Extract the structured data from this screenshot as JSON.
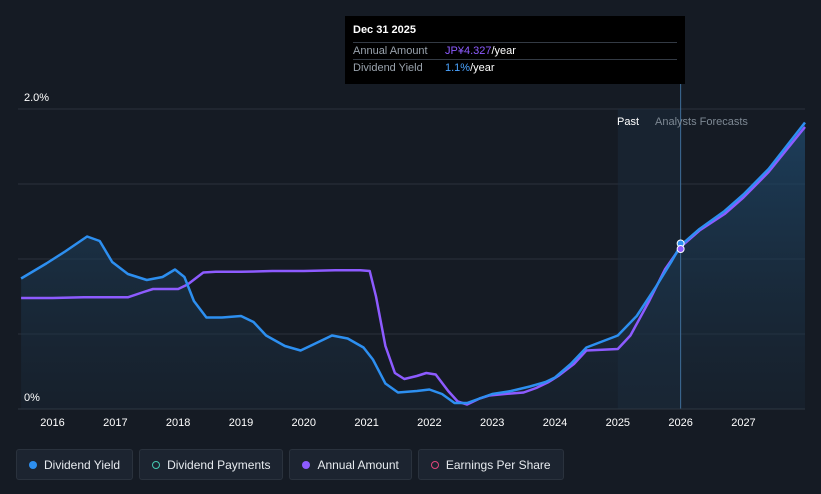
{
  "chart_data": {
    "type": "line",
    "y_axis": {
      "top_label": "2.0%",
      "bottom_label": "0%",
      "ylim": [
        0,
        2.0
      ]
    },
    "x_tick_labels": [
      "2016",
      "2017",
      "2018",
      "2019",
      "2020",
      "2021",
      "2022",
      "2023",
      "2024",
      "2025",
      "2026",
      "2027"
    ],
    "xlim": [
      2015.45,
      2027.98
    ],
    "region_labels": {
      "past": "Past",
      "forecast": "Analysts Forecasts"
    },
    "divider_x": 2026.0,
    "series": [
      {
        "name": "Dividend Yield",
        "color": "#2d8ff0",
        "points": [
          [
            2015.5,
            0.87
          ],
          [
            2015.9,
            0.97
          ],
          [
            2016.2,
            1.05
          ],
          [
            2016.55,
            1.15
          ],
          [
            2016.75,
            1.12
          ],
          [
            2016.95,
            0.98
          ],
          [
            2017.2,
            0.9
          ],
          [
            2017.5,
            0.86
          ],
          [
            2017.75,
            0.88
          ],
          [
            2017.95,
            0.93
          ],
          [
            2018.1,
            0.88
          ],
          [
            2018.25,
            0.72
          ],
          [
            2018.45,
            0.61
          ],
          [
            2018.7,
            0.61
          ],
          [
            2019.0,
            0.62
          ],
          [
            2019.2,
            0.58
          ],
          [
            2019.4,
            0.49
          ],
          [
            2019.7,
            0.42
          ],
          [
            2019.95,
            0.39
          ],
          [
            2020.1,
            0.42
          ],
          [
            2020.45,
            0.49
          ],
          [
            2020.7,
            0.47
          ],
          [
            2020.95,
            0.41
          ],
          [
            2021.1,
            0.33
          ],
          [
            2021.3,
            0.17
          ],
          [
            2021.5,
            0.11
          ],
          [
            2021.8,
            0.12
          ],
          [
            2022.0,
            0.13
          ],
          [
            2022.2,
            0.1
          ],
          [
            2022.4,
            0.04
          ],
          [
            2022.6,
            0.04
          ],
          [
            2022.8,
            0.07
          ],
          [
            2023.0,
            0.1
          ],
          [
            2023.3,
            0.12
          ],
          [
            2023.6,
            0.15
          ],
          [
            2023.85,
            0.18
          ],
          [
            2024.0,
            0.21
          ],
          [
            2024.25,
            0.3
          ],
          [
            2024.5,
            0.41
          ],
          [
            2024.75,
            0.45
          ],
          [
            2025.0,
            0.49
          ],
          [
            2025.3,
            0.62
          ],
          [
            2025.6,
            0.81
          ],
          [
            2025.85,
            0.98
          ],
          [
            2026.0,
            1.09
          ],
          [
            2026.3,
            1.2
          ],
          [
            2026.7,
            1.32
          ],
          [
            2027.0,
            1.43
          ],
          [
            2027.4,
            1.6
          ],
          [
            2027.98,
            1.91
          ]
        ]
      },
      {
        "name": "Annual Amount",
        "color": "#8d5bff",
        "points": [
          [
            2015.5,
            0.74
          ],
          [
            2016.0,
            0.74
          ],
          [
            2016.5,
            0.745
          ],
          [
            2016.9,
            0.745
          ],
          [
            2017.2,
            0.745
          ],
          [
            2017.45,
            0.78
          ],
          [
            2017.6,
            0.8
          ],
          [
            2018.0,
            0.8
          ],
          [
            2018.15,
            0.83
          ],
          [
            2018.4,
            0.91
          ],
          [
            2018.6,
            0.915
          ],
          [
            2019.0,
            0.915
          ],
          [
            2019.5,
            0.92
          ],
          [
            2020.0,
            0.92
          ],
          [
            2020.5,
            0.925
          ],
          [
            2020.9,
            0.925
          ],
          [
            2021.05,
            0.92
          ],
          [
            2021.15,
            0.75
          ],
          [
            2021.3,
            0.42
          ],
          [
            2021.45,
            0.24
          ],
          [
            2021.6,
            0.2
          ],
          [
            2021.8,
            0.22
          ],
          [
            2021.95,
            0.24
          ],
          [
            2022.1,
            0.23
          ],
          [
            2022.3,
            0.12
          ],
          [
            2022.45,
            0.05
          ],
          [
            2022.6,
            0.03
          ],
          [
            2022.8,
            0.07
          ],
          [
            2022.95,
            0.09
          ],
          [
            2023.2,
            0.1
          ],
          [
            2023.5,
            0.11
          ],
          [
            2023.7,
            0.14
          ],
          [
            2023.9,
            0.18
          ],
          [
            2024.05,
            0.22
          ],
          [
            2024.3,
            0.3
          ],
          [
            2024.5,
            0.39
          ],
          [
            2024.75,
            0.395
          ],
          [
            2025.0,
            0.4
          ],
          [
            2025.2,
            0.49
          ],
          [
            2025.5,
            0.72
          ],
          [
            2025.75,
            0.93
          ],
          [
            2026.0,
            1.08
          ],
          [
            2026.3,
            1.19
          ],
          [
            2026.7,
            1.3
          ],
          [
            2027.0,
            1.41
          ],
          [
            2027.4,
            1.58
          ],
          [
            2027.98,
            1.88
          ]
        ]
      }
    ],
    "highlight_markers": [
      [
        2026.0,
        1.09
      ],
      [
        2026.0,
        1.08
      ]
    ]
  },
  "tooltip": {
    "date": "Dec 31 2025",
    "rows": [
      {
        "label": "Annual Amount",
        "value_hl": "JP¥4.327",
        "value_suffix": "/year"
      },
      {
        "label": "Dividend Yield",
        "value_hl": "1.1%",
        "value_suffix": "/year"
      }
    ]
  },
  "legend": [
    {
      "label": "Dividend Yield",
      "color": "#2d8ff0",
      "style": "filled"
    },
    {
      "label": "Dividend Payments",
      "color": "#45c9b1",
      "style": "hollow"
    },
    {
      "label": "Annual Amount",
      "color": "#8d5bff",
      "style": "filled"
    },
    {
      "label": "Earnings Per Share",
      "color": "#e0457b",
      "style": "hollow"
    }
  ]
}
